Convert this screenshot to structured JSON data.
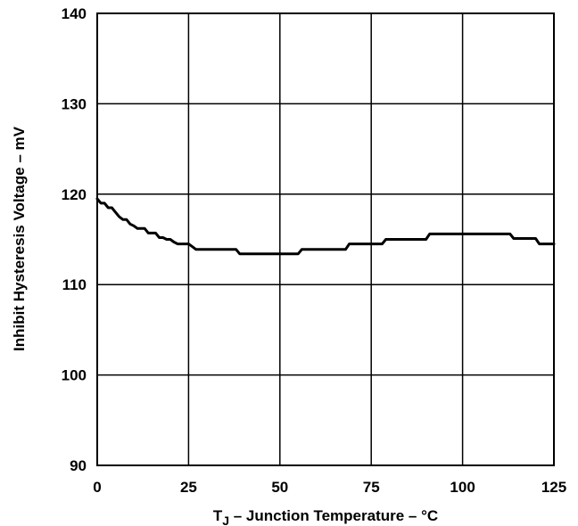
{
  "chart_data": {
    "type": "line",
    "xlabel": {
      "prefix": "T",
      "subscript": "J",
      "suffix": " – Junction Temperature – °C"
    },
    "ylabel": "Inhibit Hysteresis Voltage – mV",
    "xlim": [
      0,
      125
    ],
    "ylim": [
      90,
      140
    ],
    "xticks": [
      "0",
      "25",
      "50",
      "75",
      "100",
      "125"
    ],
    "yticks": [
      "90",
      "100",
      "110",
      "120",
      "130",
      "140"
    ],
    "grid": true,
    "series": [
      {
        "x": [
          0,
          1,
          2,
          3,
          4,
          5,
          6,
          7,
          8,
          9,
          10,
          11,
          12,
          13,
          14,
          15,
          16,
          17,
          18,
          19,
          20,
          21,
          22,
          23,
          24,
          25,
          26,
          27,
          28,
          38,
          39,
          55,
          56,
          68,
          69,
          78,
          79,
          90,
          91,
          113,
          114,
          120,
          121,
          125
        ],
        "y": [
          119.5,
          119.0,
          119.0,
          118.5,
          118.5,
          118.0,
          117.5,
          117.2,
          117.2,
          116.7,
          116.5,
          116.2,
          116.2,
          116.2,
          115.7,
          115.7,
          115.7,
          115.2,
          115.2,
          115.0,
          115.0,
          114.7,
          114.5,
          114.5,
          114.5,
          114.5,
          114.2,
          113.9,
          113.9,
          113.9,
          113.4,
          113.4,
          113.9,
          113.9,
          114.5,
          114.5,
          115.0,
          115.0,
          115.6,
          115.6,
          115.1,
          115.1,
          114.5,
          114.5
        ]
      }
    ],
    "colors": {
      "line": "#000000",
      "grid": "#000000",
      "background": "#ffffff"
    }
  }
}
